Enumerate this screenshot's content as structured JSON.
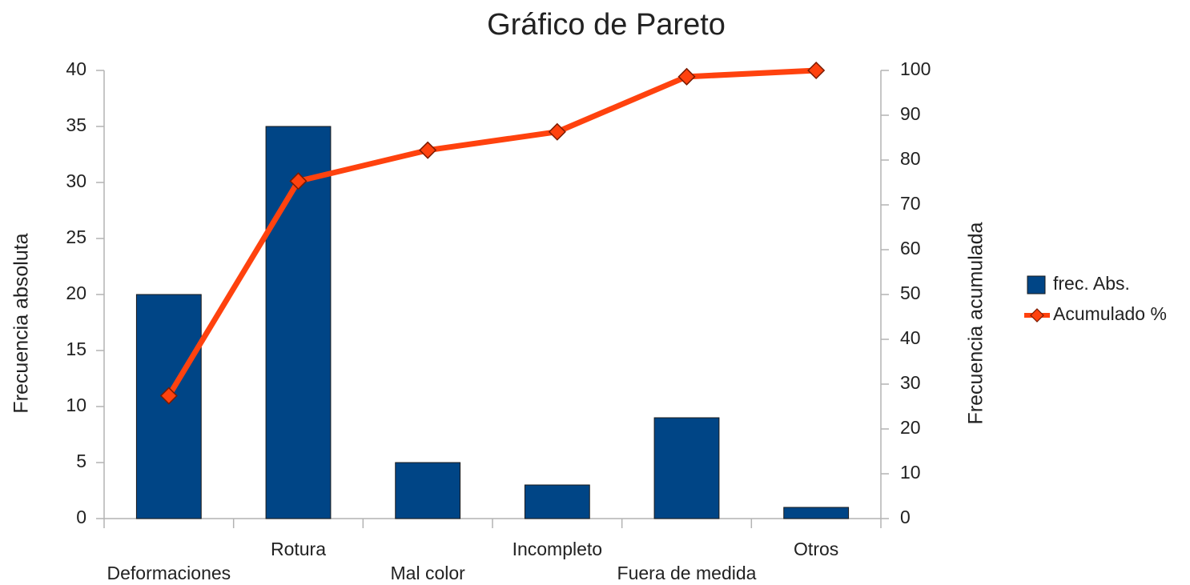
{
  "chart_data": {
    "type": "bar",
    "title": "Gráfico de Pareto",
    "ylabel": "Frecuencia absoluta",
    "y2label": "Frecuencia acumulada",
    "categories": [
      "Deformaciones",
      "Rotura",
      "Mal color",
      "Incompleto",
      "Fuera de medida",
      "Otros"
    ],
    "series": [
      {
        "name": "frec. Abs.",
        "type": "bar",
        "color": "#004586",
        "values": [
          20,
          35,
          5,
          3,
          9,
          1
        ]
      },
      {
        "name": "Acumulado %",
        "type": "line",
        "axis": "y2",
        "color": "#ff420e",
        "values": [
          27.4,
          75.3,
          82.2,
          86.3,
          98.6,
          100
        ]
      }
    ],
    "ylim": [
      0,
      40
    ],
    "yticks": [
      0,
      5,
      10,
      15,
      20,
      25,
      30,
      35,
      40
    ],
    "y2lim": [
      0,
      100
    ],
    "y2ticks": [
      0,
      10,
      20,
      30,
      40,
      50,
      60,
      70,
      80,
      90,
      100
    ],
    "grid": false,
    "legend": "right"
  }
}
